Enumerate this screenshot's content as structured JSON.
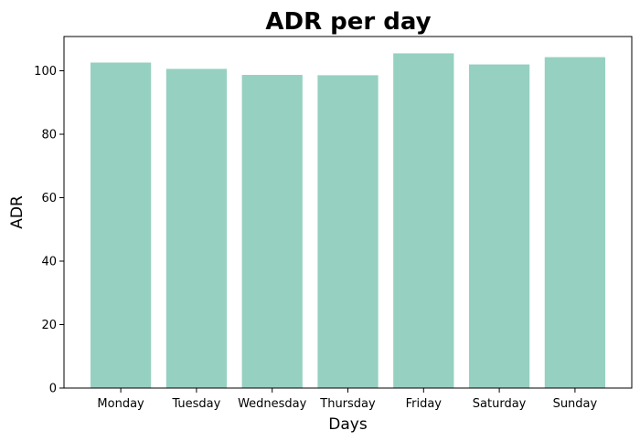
{
  "chart_data": {
    "type": "bar",
    "title": "ADR per day",
    "xlabel": "Days",
    "ylabel": "ADR",
    "categories": [
      "Monday",
      "Tuesday",
      "Wednesday",
      "Thursday",
      "Friday",
      "Saturday",
      "Sunday"
    ],
    "values": [
      102.6,
      100.6,
      98.7,
      98.6,
      105.5,
      102.0,
      104.3
    ],
    "ylim": [
      0,
      110.8
    ],
    "yticks": [
      0,
      20,
      40,
      60,
      80,
      100
    ],
    "bar_color": "#96d0c1",
    "grid": false,
    "legend": "none"
  }
}
